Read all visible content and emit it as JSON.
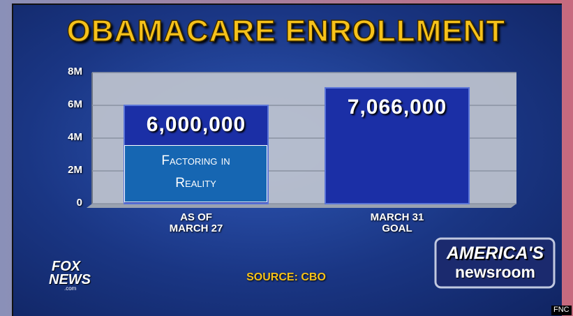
{
  "chart_data": {
    "type": "bar",
    "title": "OBAMACARE ENROLLMENT",
    "categories": [
      "AS OF\nMARCH 27",
      "MARCH 31\nGOAL"
    ],
    "values": [
      6000000,
      7066000
    ],
    "value_labels": [
      "6,000,000",
      "7,066,000"
    ],
    "color": "#1b2fa6",
    "ylim": [
      0,
      8000000
    ],
    "yticks": [
      {
        "value": 0,
        "label": "0"
      },
      {
        "value": 2000000,
        "label": "2M"
      },
      {
        "value": 4000000,
        "label": "4M"
      },
      {
        "value": 6000000,
        "label": "6M"
      },
      {
        "value": 8000000,
        "label": "8M"
      }
    ],
    "grid": true,
    "annotation": "Factoring in Reality",
    "source": "SOURCE: CBO"
  },
  "branding": {
    "network_logo": [
      "FOX",
      "NEWS",
      ".com"
    ],
    "show_logo": [
      "AMERICA'S",
      "newsroom"
    ],
    "channel": "FNC"
  }
}
